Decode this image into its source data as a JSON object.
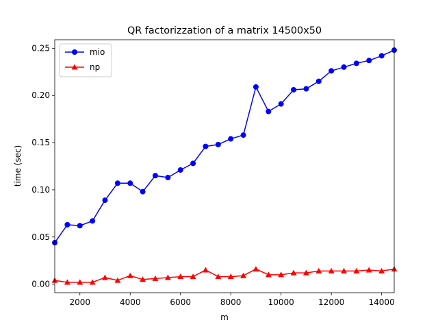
{
  "chart_data": {
    "type": "line",
    "title": "QR factorizzation of a matrix 14500x50",
    "xlabel": "m",
    "ylabel": "time (sec)",
    "xlim": [
      1000,
      14500
    ],
    "ylim": [
      -0.009,
      0.259
    ],
    "xticks": [
      2000,
      4000,
      6000,
      8000,
      10000,
      12000,
      14000
    ],
    "yticks": [
      0.0,
      0.05,
      0.1,
      0.15,
      0.2,
      0.25
    ],
    "xtick_labels": [
      "2000",
      "4000",
      "6000",
      "8000",
      "10000",
      "12000",
      "14000"
    ],
    "ytick_labels": [
      "0.00",
      "0.05",
      "0.10",
      "0.15",
      "0.20",
      "0.25"
    ],
    "grid": false,
    "legend": "top-left",
    "x": [
      1000,
      1500,
      2000,
      2500,
      3000,
      3500,
      4000,
      4500,
      5000,
      5500,
      6000,
      6500,
      7000,
      7500,
      8000,
      8500,
      9000,
      9500,
      10000,
      10500,
      11000,
      11500,
      12000,
      12500,
      13000,
      13500,
      14000,
      14500
    ],
    "series": [
      {
        "name": "mio",
        "color": "#0000ff",
        "marker": "circle",
        "values": [
          0.044,
          0.063,
          0.062,
          0.067,
          0.089,
          0.107,
          0.107,
          0.098,
          0.115,
          0.113,
          0.121,
          0.128,
          0.146,
          0.148,
          0.154,
          0.158,
          0.209,
          0.183,
          0.191,
          0.206,
          0.207,
          0.215,
          0.226,
          0.23,
          0.234,
          0.237,
          0.242,
          0.248
        ]
      },
      {
        "name": "np",
        "color": "#ff0000",
        "marker": "triangle",
        "values": [
          0.004,
          0.002,
          0.002,
          0.002,
          0.007,
          0.004,
          0.009,
          0.005,
          0.006,
          0.007,
          0.008,
          0.008,
          0.015,
          0.008,
          0.008,
          0.009,
          0.016,
          0.01,
          0.01,
          0.012,
          0.012,
          0.014,
          0.014,
          0.014,
          0.014,
          0.015,
          0.014,
          0.016
        ]
      }
    ]
  }
}
